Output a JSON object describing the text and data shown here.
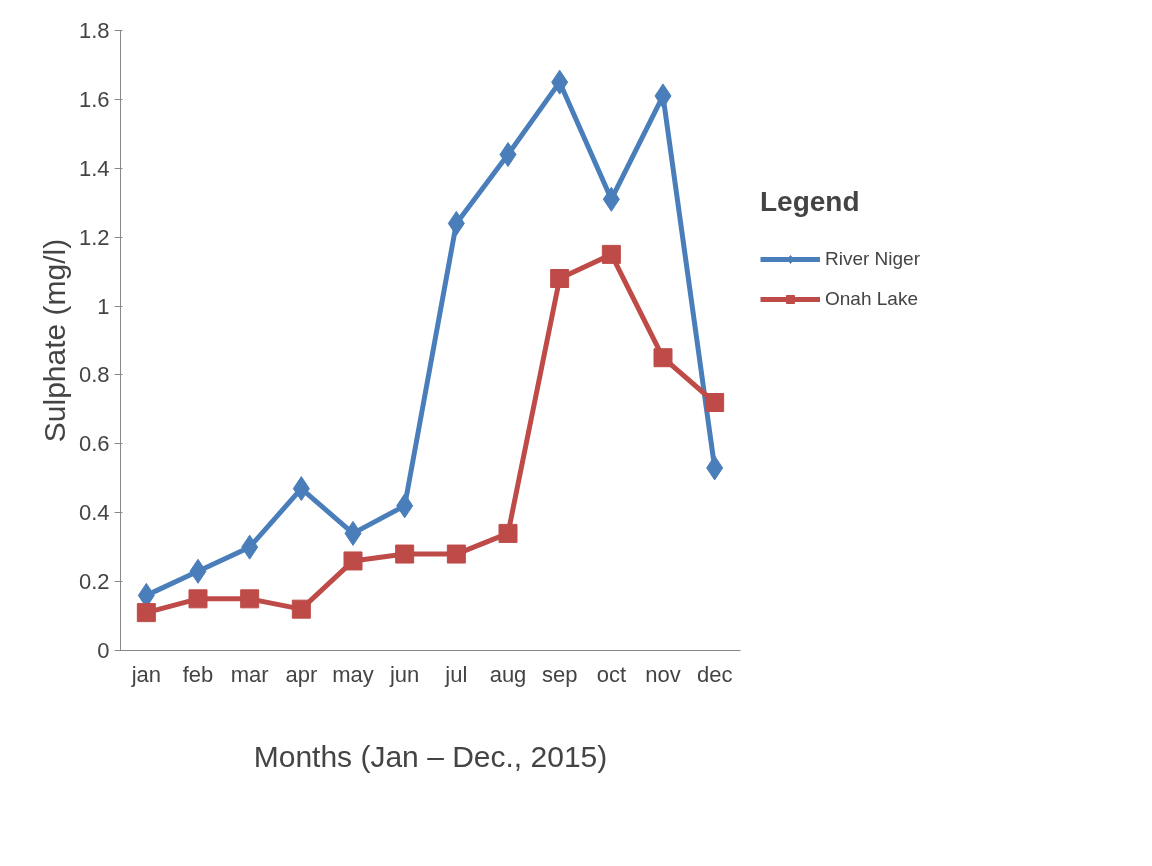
{
  "chart_data": {
    "type": "line",
    "xlabel": "Months (Jan – Dec., 2015)",
    "ylabel": "Sulphate (mg/l)",
    "legend_title": "Legend",
    "categories": [
      "jan",
      "feb",
      "mar",
      "apr",
      "may",
      "jun",
      "jul",
      "aug",
      "sep",
      "oct",
      "nov",
      "dec"
    ],
    "series": [
      {
        "name": "River Niger",
        "color": "#4a7ebb",
        "marker": "diamond",
        "values": [
          0.16,
          0.23,
          0.3,
          0.47,
          0.34,
          0.42,
          1.24,
          1.44,
          1.65,
          1.31,
          1.61,
          0.53
        ]
      },
      {
        "name": "Onah Lake",
        "color": "#be4b48",
        "marker": "square",
        "values": [
          0.11,
          0.15,
          0.15,
          0.12,
          0.26,
          0.28,
          0.28,
          0.34,
          1.08,
          1.15,
          0.85,
          0.72
        ]
      }
    ],
    "ylim": [
      0,
      1.8
    ],
    "yticks": [
      0,
      0.2,
      0.4,
      0.6,
      0.8,
      1,
      1.2,
      1.4,
      1.6,
      1.8
    ],
    "grid": false,
    "legend": "right",
    "line_style": "solid"
  }
}
